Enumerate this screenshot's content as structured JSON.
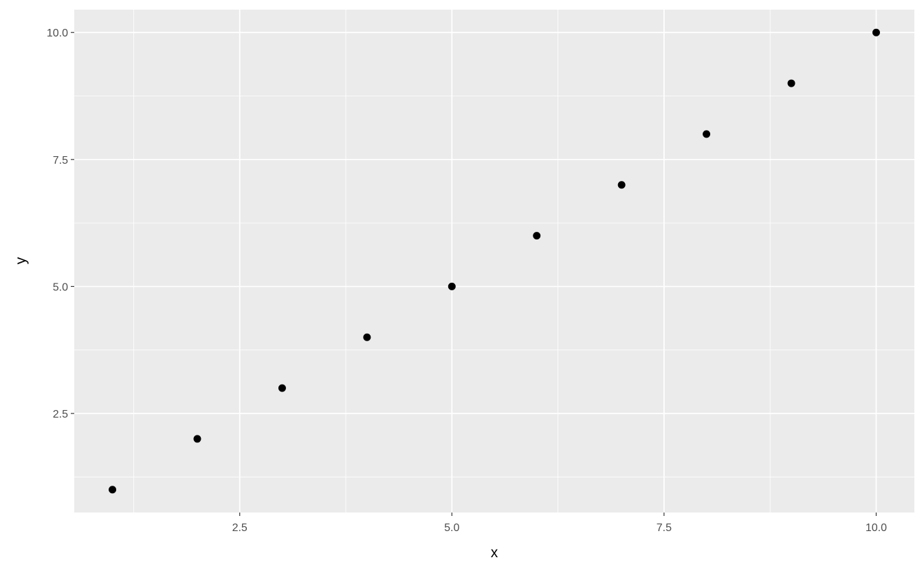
{
  "chart_data": {
    "type": "scatter",
    "title": "",
    "xlabel": "x",
    "ylabel": "y",
    "x": [
      1,
      2,
      3,
      4,
      5,
      6,
      7,
      8,
      9,
      10
    ],
    "y": [
      1,
      2,
      3,
      4,
      5,
      6,
      7,
      8,
      9,
      10
    ],
    "xlim": [
      0.55,
      10.45
    ],
    "ylim": [
      0.55,
      10.45
    ],
    "xticks": [
      2.5,
      5.0,
      7.5,
      10.0
    ],
    "xtick_labels": [
      "2.5",
      "5.0",
      "7.5",
      "10.0"
    ],
    "yticks": [
      2.5,
      5.0,
      7.5,
      10.0
    ],
    "ytick_labels": [
      "2.5",
      "5.0",
      "7.5",
      "10.0"
    ],
    "minor_grid": [
      1.25,
      3.75,
      6.25,
      8.75
    ],
    "grid": true,
    "legend": "none",
    "colors": {
      "panel": "#ebebeb",
      "grid": "#ffffff",
      "point": "#000000",
      "tick_text": "#4d4d4d"
    }
  }
}
